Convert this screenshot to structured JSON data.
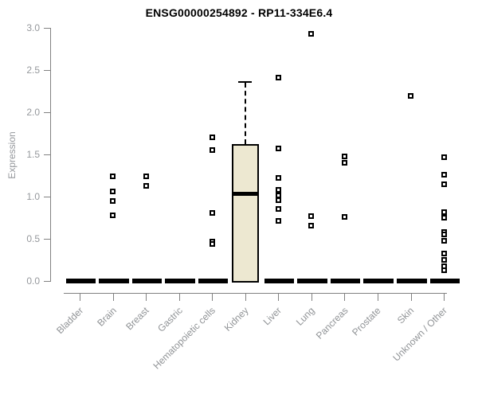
{
  "title": "ENSG00000254892 - RP11-334E6.4",
  "chart_data": {
    "type": "boxplot",
    "title": "ENSG00000254892 - RP11-334E6.4",
    "xlabel": "",
    "ylabel": "Expression",
    "ylim": [
      0.0,
      3.0
    ],
    "yticks": [
      0.0,
      0.5,
      1.0,
      1.5,
      2.0,
      2.5,
      3.0
    ],
    "grid": false,
    "legend": "none",
    "categories": [
      "Bladder",
      "Brain",
      "Breast",
      "Gastric",
      "Hematopoietic cells",
      "Kidney",
      "Liver",
      "Lung",
      "Pancreas",
      "Prostate",
      "Skin",
      "Unknown / Other"
    ],
    "groups": [
      {
        "category": "Bladder",
        "median": 0.0,
        "points": [],
        "zero_points": true
      },
      {
        "category": "Brain",
        "median": 0.0,
        "points": [
          1.24,
          1.06,
          0.95,
          0.78
        ],
        "zero_points": true
      },
      {
        "category": "Breast",
        "median": 0.0,
        "points": [
          1.24,
          1.13
        ],
        "zero_points": true
      },
      {
        "category": "Gastric",
        "median": 0.0,
        "points": [],
        "zero_points": true
      },
      {
        "category": "Hematopoietic cells",
        "median": 0.0,
        "points": [
          1.7,
          1.55,
          0.81,
          0.47,
          0.44
        ],
        "zero_points": true
      },
      {
        "category": "Kidney",
        "box": {
          "q1": 0.0,
          "median": 1.04,
          "q3": 1.62,
          "whisker_high": 2.37
        },
        "points": [],
        "zero_points": false
      },
      {
        "category": "Liver",
        "median": 0.0,
        "points": [
          2.41,
          1.57,
          1.22,
          1.08,
          1.01,
          0.96,
          0.85,
          0.71
        ],
        "zero_points": true
      },
      {
        "category": "Lung",
        "median": 0.0,
        "points": [
          2.93,
          0.77,
          0.66
        ],
        "zero_points": true
      },
      {
        "category": "Pancreas",
        "median": 0.0,
        "points": [
          1.48,
          1.4,
          0.76
        ],
        "zero_points": true
      },
      {
        "category": "Prostate",
        "median": 0.0,
        "points": [],
        "zero_points": true
      },
      {
        "category": "Skin",
        "median": 0.0,
        "points": [
          2.19
        ],
        "zero_points": true
      },
      {
        "category": "Unknown / Other",
        "median": 0.0,
        "points": [
          1.47,
          1.26,
          1.15,
          0.82,
          0.75,
          0.58,
          0.55,
          0.48,
          0.33,
          0.25,
          0.17,
          0.13
        ],
        "zero_points": true
      }
    ],
    "colors": {
      "box_fill": "#ede8d1",
      "box_border": "#000000",
      "median": "#000000",
      "point": "#000000",
      "axis": "#818181",
      "axis_text": "#95989c",
      "title_text": "#000000",
      "background": "#ffffff"
    }
  }
}
